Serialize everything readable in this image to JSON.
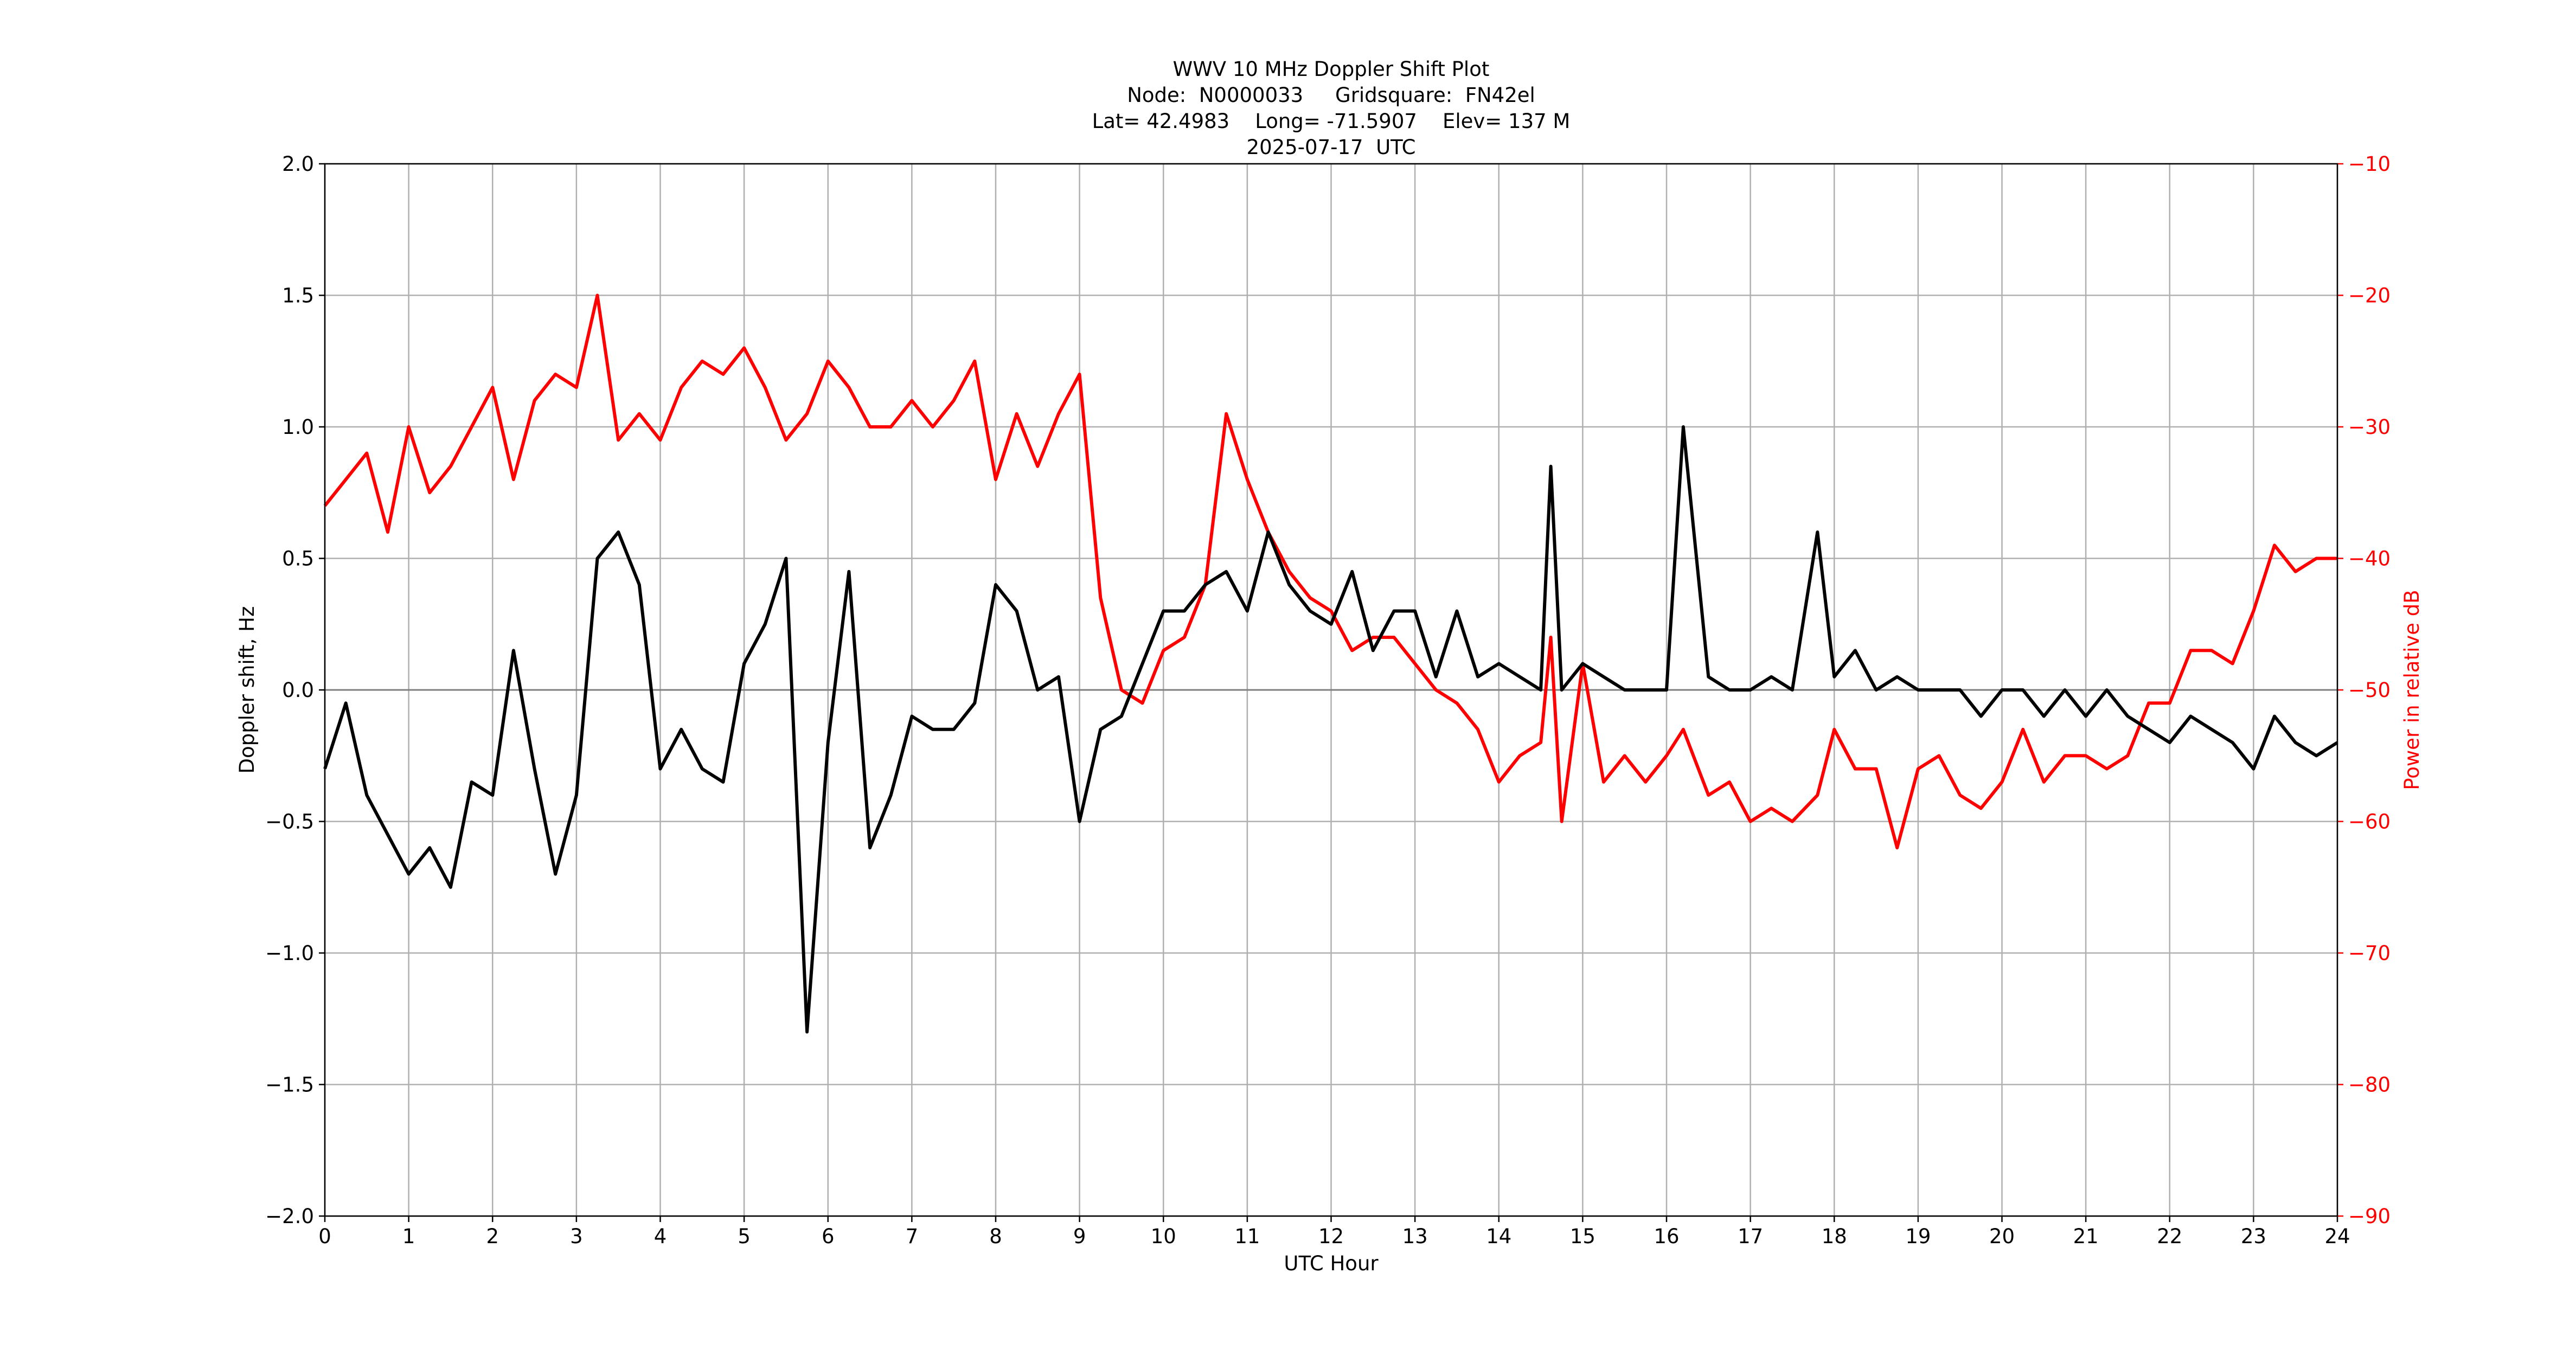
{
  "chart_data": {
    "type": "line",
    "title": [
      "WWV 10 MHz Doppler Shift Plot",
      "Node:  N0000033     Gridsquare:  FN42el",
      "Lat= 42.4983    Long= -71.5907    Elev= 137 M",
      "2025-07-17  UTC"
    ],
    "xlabel": "UTC Hour",
    "ylabel": "Doppler shift, Hz",
    "y2label": "Power in relative dB",
    "x": [
      0,
      0.25,
      0.5,
      0.75,
      1,
      1.25,
      1.5,
      1.75,
      2,
      2.25,
      2.5,
      2.75,
      3,
      3.25,
      3.5,
      3.75,
      4,
      4.25,
      4.5,
      4.75,
      5,
      5.25,
      5.5,
      5.75,
      6,
      6.25,
      6.5,
      6.75,
      7,
      7.25,
      7.5,
      7.75,
      8,
      8.25,
      8.5,
      8.75,
      9,
      9.25,
      9.5,
      9.75,
      10,
      10.25,
      10.5,
      10.75,
      11,
      11.25,
      11.5,
      11.75,
      12,
      12.25,
      12.5,
      12.75,
      13,
      13.25,
      13.5,
      13.75,
      14,
      14.25,
      14.5,
      14.62,
      14.75,
      15,
      15.25,
      15.5,
      15.75,
      16,
      16.2,
      16.5,
      16.75,
      17,
      17.25,
      17.5,
      17.8,
      18,
      18.25,
      18.5,
      18.75,
      19,
      19.25,
      19.5,
      19.75,
      20,
      20.25,
      20.5,
      20.75,
      21,
      21.25,
      21.5,
      21.75,
      22,
      22.25,
      22.5,
      22.75,
      23,
      23.25,
      23.5,
      23.75,
      24
    ],
    "series": [
      {
        "name": "Doppler shift",
        "color": "#000000",
        "axis": "y",
        "values": [
          -0.3,
          -0.05,
          -0.4,
          -0.55,
          -0.7,
          -0.6,
          -0.75,
          -0.35,
          -0.4,
          0.15,
          -0.3,
          -0.7,
          -0.4,
          0.5,
          0.6,
          0.4,
          -0.3,
          -0.15,
          -0.3,
          -0.35,
          0.1,
          0.25,
          0.5,
          -1.3,
          -0.2,
          0.45,
          -0.6,
          -0.4,
          -0.1,
          -0.15,
          -0.15,
          -0.05,
          0.4,
          0.3,
          0,
          0.05,
          -0.5,
          -0.15,
          -0.1,
          0.1,
          0.3,
          0.3,
          0.4,
          0.45,
          0.3,
          0.6,
          0.4,
          0.3,
          0.25,
          0.45,
          0.15,
          0.3,
          0.3,
          0.05,
          0.3,
          0.05,
          0.1,
          0.05,
          0,
          0.85,
          0,
          0.1,
          0.05,
          0,
          0,
          0,
          1,
          0.05,
          0,
          0,
          0.05,
          0,
          0.6,
          0.05,
          0.15,
          0,
          0.05,
          0,
          0,
          0,
          -0.1,
          0,
          0,
          -0.1,
          0,
          -0.1,
          0,
          -0.1,
          -0.15,
          -0.2,
          -0.1,
          -0.15,
          -0.2,
          -0.3,
          -0.1,
          -0.2,
          -0.25,
          -0.2
        ]
      },
      {
        "name": "Power",
        "color": "#ff0000",
        "axis": "y2",
        "values": [
          -36,
          -34,
          -32,
          -38,
          -30,
          -35,
          -33,
          -30,
          -27,
          -34,
          -28,
          -26,
          -27,
          -20,
          -31,
          -29,
          -31,
          -27,
          -25,
          -26,
          -24,
          -27,
          -31,
          -29,
          -25,
          -27,
          -30,
          -30,
          -28,
          -30,
          -28,
          -25,
          -34,
          -29,
          -33,
          -29,
          -26,
          -43,
          -50,
          -51,
          -47,
          -46,
          -42,
          -29,
          -34,
          -38,
          -41,
          -43,
          -44,
          -47,
          -46,
          -46,
          -48,
          -50,
          -51,
          -53,
          -57,
          -55,
          -54,
          -46,
          -60,
          -48,
          -57,
          -55,
          -57,
          -55,
          -53,
          -58,
          -57,
          -60,
          -59,
          -60,
          -58,
          -53,
          -56,
          -56,
          -62,
          -56,
          -55,
          -58,
          -59,
          -57,
          -53,
          -57,
          -55,
          -55,
          -56,
          -55,
          -51,
          -51,
          -47,
          -47,
          -48,
          -44,
          -39,
          -41,
          -40,
          -40
        ]
      }
    ],
    "xlim": [
      0,
      24
    ],
    "xticks": [
      0,
      1,
      2,
      3,
      4,
      5,
      6,
      7,
      8,
      9,
      10,
      11,
      12,
      13,
      14,
      15,
      16,
      17,
      18,
      19,
      20,
      21,
      22,
      23,
      24
    ],
    "ylim": [
      -2,
      2
    ],
    "yticks": [
      {
        "value": -2,
        "label": "−2.0"
      },
      {
        "value": -1.5,
        "label": "−1.5"
      },
      {
        "value": -1,
        "label": "−1.0"
      },
      {
        "value": -0.5,
        "label": "−0.5"
      },
      {
        "value": 0,
        "label": "0.0"
      },
      {
        "value": 0.5,
        "label": "0.5"
      },
      {
        "value": 1,
        "label": "1.0"
      },
      {
        "value": 1.5,
        "label": "1.5"
      },
      {
        "value": 2,
        "label": "2.0"
      }
    ],
    "y2lim": [
      -90,
      -10
    ],
    "y2ticks": [
      {
        "value": -90,
        "label": "−90"
      },
      {
        "value": -80,
        "label": "−80"
      },
      {
        "value": -70,
        "label": "−70"
      },
      {
        "value": -60,
        "label": "−60"
      },
      {
        "value": -50,
        "label": "−50"
      },
      {
        "value": -40,
        "label": "−40"
      },
      {
        "value": -30,
        "label": "−30"
      },
      {
        "value": -20,
        "label": "−20"
      },
      {
        "value": -10,
        "label": "−10"
      }
    ],
    "grid": true,
    "y2color": "#ff0000"
  }
}
